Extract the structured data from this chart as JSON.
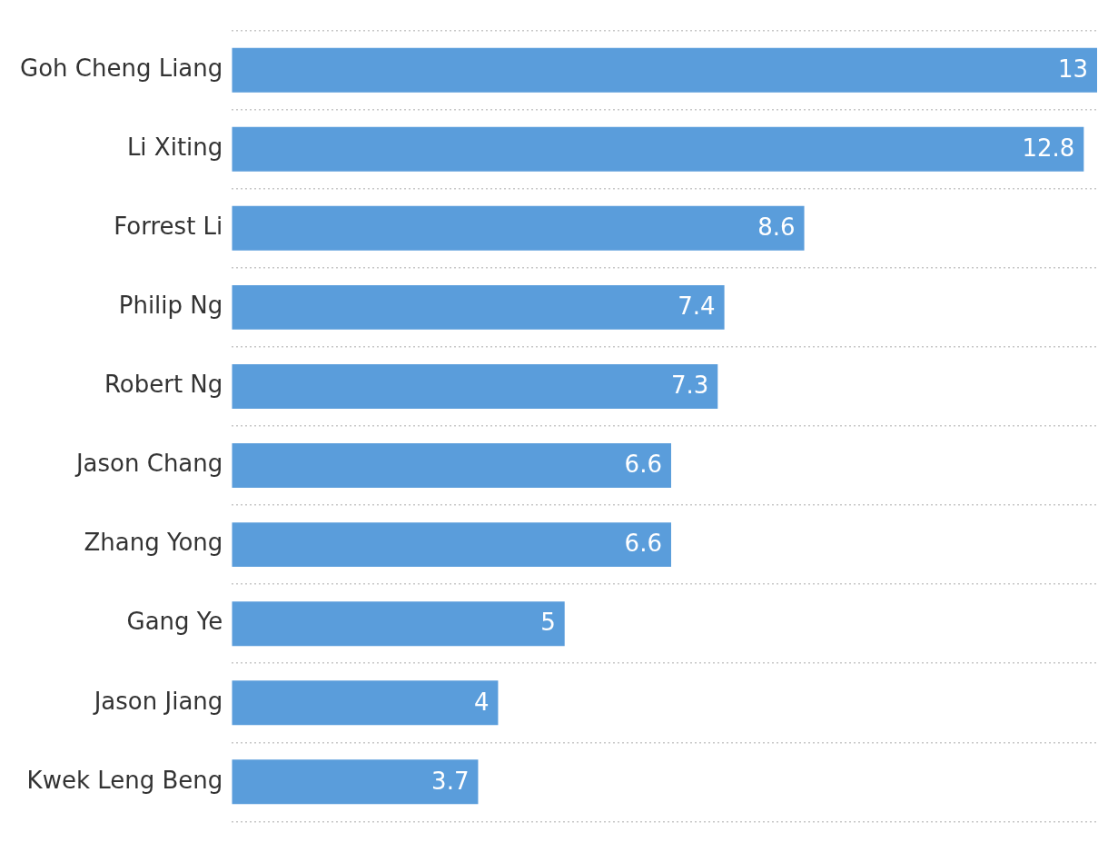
{
  "chart_data": {
    "type": "bar",
    "orientation": "horizontal",
    "categories": [
      "Goh Cheng Liang",
      "Li Xiting",
      "Forrest Li",
      "Philip Ng",
      "Robert Ng",
      "Jason Chang",
      "Zhang Yong",
      "Gang Ye",
      "Jason Jiang",
      "Kwek Leng Beng"
    ],
    "values": [
      13,
      12.8,
      8.6,
      7.4,
      7.3,
      6.6,
      6.6,
      5,
      4,
      3.7
    ],
    "color": "#5a9ddb",
    "xlim": [
      0,
      13
    ],
    "data_labels": true,
    "grid": "y",
    "tick_labels": "y",
    "legend": false
  }
}
